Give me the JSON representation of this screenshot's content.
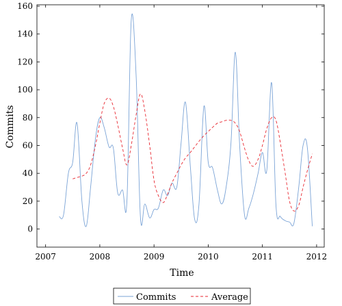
{
  "chart_data": {
    "type": "line",
    "title": "",
    "xlabel": "Time",
    "ylabel": "Commits",
    "xlim": [
      2006.84,
      2012.14
    ],
    "ylim": [
      -13,
      161
    ],
    "xticks": [
      2007,
      2008,
      2009,
      2010,
      2011,
      2012
    ],
    "yticks": [
      0,
      20,
      40,
      60,
      80,
      100,
      120,
      140,
      160
    ],
    "legend": "bottom-center",
    "grid": false,
    "series": [
      {
        "name": "Commits",
        "color": "#7aa3d6",
        "style": "solid",
        "x": [
          2007.25,
          2007.33,
          2007.42,
          2007.5,
          2007.58,
          2007.67,
          2007.75,
          2007.83,
          2007.92,
          2008.0,
          2008.08,
          2008.17,
          2008.25,
          2008.33,
          2008.42,
          2008.5,
          2008.58,
          2008.67,
          2008.75,
          2008.83,
          2008.92,
          2009.0,
          2009.08,
          2009.17,
          2009.25,
          2009.33,
          2009.42,
          2009.5,
          2009.58,
          2009.67,
          2009.75,
          2009.83,
          2009.92,
          2010.0,
          2010.08,
          2010.17,
          2010.25,
          2010.33,
          2010.42,
          2010.5,
          2010.58,
          2010.67,
          2010.75,
          2010.83,
          2010.92,
          2011.0,
          2011.08,
          2011.17,
          2011.25,
          2011.33,
          2011.42,
          2011.5,
          2011.58,
          2011.67,
          2011.75,
          2011.83,
          2011.92
        ],
        "values": [
          9,
          10,
          40,
          48,
          76,
          20,
          2,
          30,
          65,
          80,
          73,
          59,
          58,
          26,
          28,
          20,
          150,
          110,
          8,
          18,
          8,
          14,
          15,
          28,
          24,
          33,
          30,
          62,
          91,
          45,
          7,
          18,
          88,
          48,
          44,
          28,
          18,
          30,
          62,
          127,
          60,
          10,
          15,
          25,
          40,
          55,
          42,
          105,
          17,
          9,
          6,
          5,
          4,
          30,
          60,
          58,
          2
        ]
      },
      {
        "name": "Average",
        "color": "#e8262f",
        "style": "dashed",
        "x": [
          2007.5,
          2007.58,
          2007.67,
          2007.75,
          2007.83,
          2007.92,
          2008.0,
          2008.08,
          2008.17,
          2008.25,
          2008.33,
          2008.42,
          2008.5,
          2008.58,
          2008.67,
          2008.75,
          2008.83,
          2008.92,
          2009.0,
          2009.08,
          2009.17,
          2009.25,
          2009.33,
          2009.42,
          2009.5,
          2009.58,
          2009.67,
          2009.75,
          2009.83,
          2009.92,
          2010.0,
          2010.08,
          2010.17,
          2010.25,
          2010.33,
          2010.42,
          2010.5,
          2010.58,
          2010.67,
          2010.75,
          2010.83,
          2010.92,
          2011.0,
          2011.08,
          2011.17,
          2011.25,
          2011.33,
          2011.42,
          2011.5,
          2011.58,
          2011.67,
          2011.75,
          2011.83,
          2011.92
        ],
        "values": [
          36,
          37,
          38,
          40,
          46,
          60,
          76,
          90,
          94,
          88,
          75,
          58,
          46,
          60,
          82,
          97,
          85,
          60,
          35,
          24,
          19,
          25,
          33,
          40,
          46,
          51,
          55,
          59,
          63,
          67,
          70,
          73,
          76,
          77,
          78,
          78,
          76,
          70,
          58,
          49,
          45,
          50,
          60,
          72,
          80,
          78,
          62,
          40,
          20,
          13,
          17,
          30,
          42,
          54
        ]
      }
    ]
  }
}
